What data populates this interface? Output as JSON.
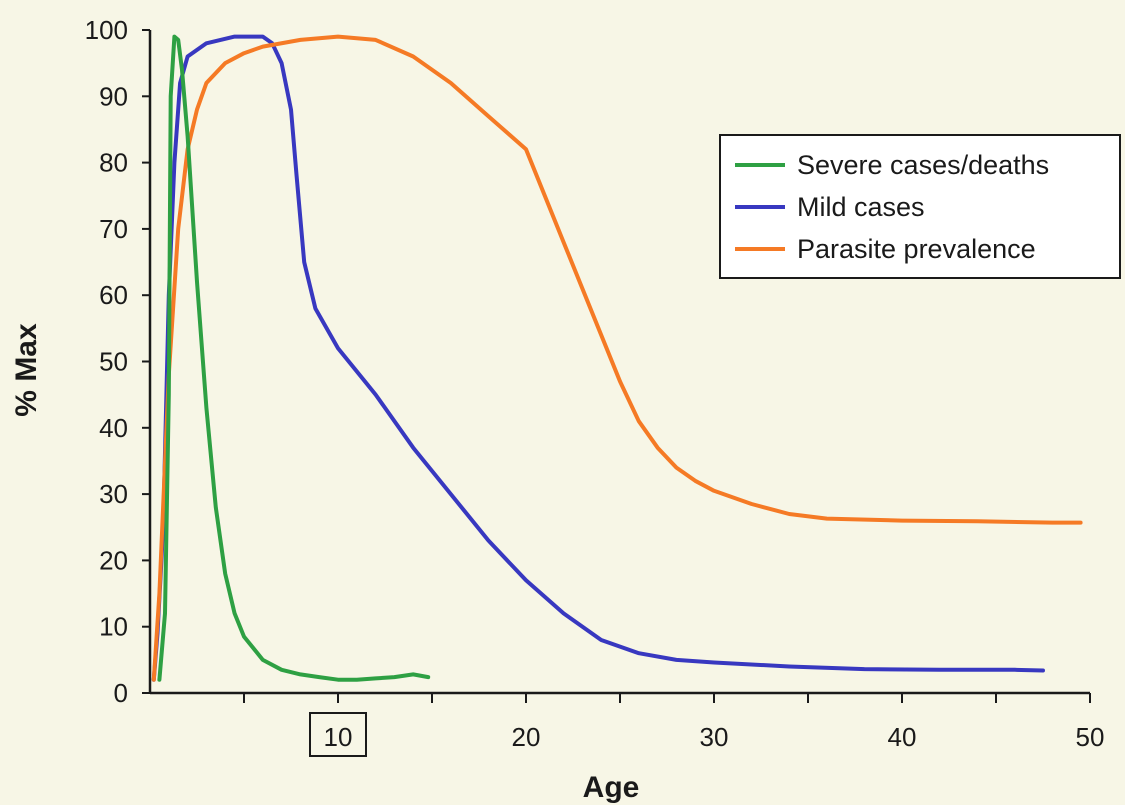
{
  "chart_data": {
    "type": "line",
    "xlabel": "Age",
    "ylabel": "% Max",
    "xlim": [
      0,
      50
    ],
    "ylim": [
      0,
      100
    ],
    "x_ticks": [
      10,
      20,
      30,
      40,
      50
    ],
    "y_ticks": [
      0,
      10,
      20,
      30,
      40,
      50,
      60,
      70,
      80,
      90,
      100
    ],
    "boxed_x_tick": 10,
    "grid": false,
    "legend_position": "top-right",
    "series": [
      {
        "name": "Severe cases/deaths",
        "color": "#2ea043",
        "points": [
          [
            0.5,
            2
          ],
          [
            0.8,
            12
          ],
          [
            1.0,
            45
          ],
          [
            1.1,
            90
          ],
          [
            1.3,
            99
          ],
          [
            1.5,
            98.5
          ],
          [
            1.7,
            94
          ],
          [
            2,
            84
          ],
          [
            2.5,
            62
          ],
          [
            3,
            43
          ],
          [
            3.5,
            28
          ],
          [
            4,
            18
          ],
          [
            4.5,
            12
          ],
          [
            5,
            8.5
          ],
          [
            6,
            5
          ],
          [
            7,
            3.5
          ],
          [
            8,
            2.8
          ],
          [
            9,
            2.4
          ],
          [
            10,
            2
          ],
          [
            11,
            2
          ],
          [
            12,
            2.2
          ],
          [
            13,
            2.4
          ],
          [
            14,
            2.8
          ],
          [
            14.8,
            2.4
          ]
        ]
      },
      {
        "name": "Mild cases",
        "color": "#3838c0",
        "points": [
          [
            0.2,
            2
          ],
          [
            0.4,
            9
          ],
          [
            0.7,
            25
          ],
          [
            1,
            60
          ],
          [
            1.3,
            80
          ],
          [
            1.6,
            92
          ],
          [
            2,
            96
          ],
          [
            3,
            98
          ],
          [
            4.5,
            99
          ],
          [
            6,
            99
          ],
          [
            6.5,
            98
          ],
          [
            7,
            95
          ],
          [
            7.5,
            88
          ],
          [
            7.8,
            78
          ],
          [
            8.2,
            65
          ],
          [
            8.8,
            58
          ],
          [
            10,
            52
          ],
          [
            12,
            45
          ],
          [
            14,
            37
          ],
          [
            16,
            30
          ],
          [
            18,
            23
          ],
          [
            20,
            17
          ],
          [
            22,
            12
          ],
          [
            24,
            8
          ],
          [
            26,
            6
          ],
          [
            28,
            5
          ],
          [
            30,
            4.6
          ],
          [
            34,
            4
          ],
          [
            38,
            3.6
          ],
          [
            42,
            3.5
          ],
          [
            46,
            3.5
          ],
          [
            47.5,
            3.4
          ]
        ]
      },
      {
        "name": "Parasite prevalence",
        "color": "#f57a25",
        "points": [
          [
            0.2,
            2
          ],
          [
            0.5,
            15
          ],
          [
            1,
            48
          ],
          [
            1.5,
            70
          ],
          [
            2,
            82
          ],
          [
            2.5,
            88
          ],
          [
            3,
            92
          ],
          [
            4,
            95
          ],
          [
            5,
            96.5
          ],
          [
            6,
            97.5
          ],
          [
            8,
            98.5
          ],
          [
            10,
            99
          ],
          [
            12,
            98.5
          ],
          [
            14,
            96
          ],
          [
            16,
            92
          ],
          [
            18,
            87
          ],
          [
            20,
            82
          ],
          [
            21,
            75
          ],
          [
            22,
            68
          ],
          [
            23,
            61
          ],
          [
            24,
            54
          ],
          [
            25,
            47
          ],
          [
            26,
            41
          ],
          [
            27,
            37
          ],
          [
            28,
            34
          ],
          [
            29,
            32
          ],
          [
            30,
            30.5
          ],
          [
            32,
            28.5
          ],
          [
            34,
            27
          ],
          [
            36,
            26.3
          ],
          [
            40,
            26
          ],
          [
            44,
            25.9
          ],
          [
            48,
            25.7
          ],
          [
            49.5,
            25.7
          ]
        ]
      }
    ]
  }
}
